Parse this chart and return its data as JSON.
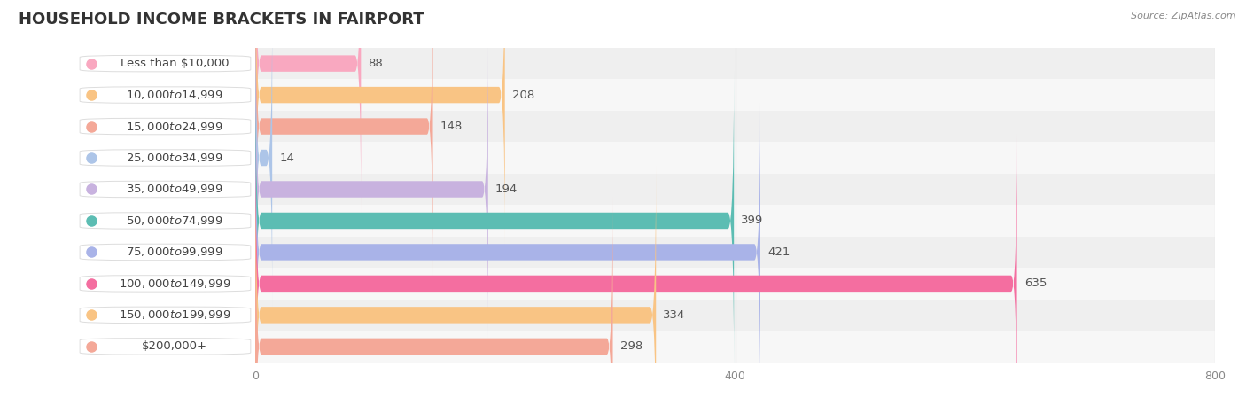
{
  "title": "HOUSEHOLD INCOME BRACKETS IN FAIRPORT",
  "source": "Source: ZipAtlas.com",
  "categories": [
    "Less than $10,000",
    "$10,000 to $14,999",
    "$15,000 to $24,999",
    "$25,000 to $34,999",
    "$35,000 to $49,999",
    "$50,000 to $74,999",
    "$75,000 to $99,999",
    "$100,000 to $149,999",
    "$150,000 to $199,999",
    "$200,000+"
  ],
  "values": [
    88,
    208,
    148,
    14,
    194,
    399,
    421,
    635,
    334,
    298
  ],
  "bar_colors": [
    "#f9a8c0",
    "#f9c484",
    "#f4a898",
    "#adc5e8",
    "#c8b2df",
    "#5cbdb3",
    "#a9b3e8",
    "#f46ea0",
    "#f9c484",
    "#f4a898"
  ],
  "background_color": "#ffffff",
  "row_colors": [
    "#f7f7f7",
    "#efefef"
  ],
  "xlim": [
    0,
    800
  ],
  "xticks": [
    0,
    400,
    800
  ],
  "title_fontsize": 13,
  "label_fontsize": 9.5,
  "value_fontsize": 9.5
}
